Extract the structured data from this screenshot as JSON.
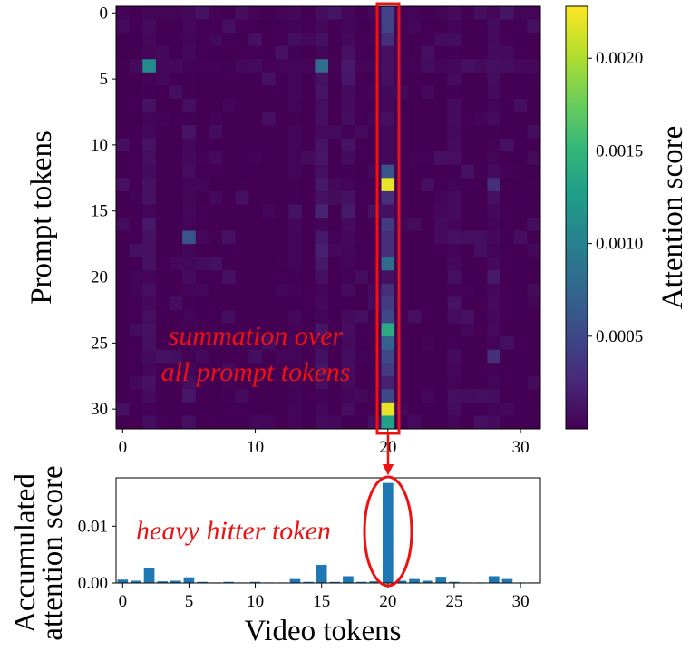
{
  "colors": {
    "highlight": "#ee1111",
    "bar": "#1f77b4",
    "viridis": [
      "#440154",
      "#482878",
      "#3e4989",
      "#31688e",
      "#26828e",
      "#1f9e89",
      "#35b779",
      "#6ece58",
      "#b5de2b",
      "#fde725"
    ]
  },
  "chart_data": [
    {
      "type": "heatmap",
      "title": "",
      "xlabel": "",
      "ylabel": "Prompt tokens",
      "x_ticks": [
        "0",
        "10",
        "20",
        "30"
      ],
      "y_ticks": [
        "0",
        "5",
        "10",
        "15",
        "20",
        "25",
        "30"
      ],
      "rows": 32,
      "cols": 32,
      "highlighted_column": 20,
      "colorbar": {
        "label": "Attention score",
        "ticks": [
          "0.0005",
          "0.0010",
          "0.0015",
          "0.0020"
        ],
        "range": [
          0.0,
          0.00228
        ]
      },
      "column_20_values": [
        0.00045,
        0.00045,
        0.0003,
        0.0001,
        0.0001,
        0.0001,
        5e-05,
        5e-05,
        0.0001,
        5e-05,
        5e-05,
        5e-05,
        0.0006,
        0.0022,
        0.0003,
        0.0001,
        0.0004,
        0.0003,
        0.0003,
        0.0008,
        0.0001,
        0.0003,
        0.0004,
        0.0005,
        0.0014,
        0.0007,
        0.0005,
        0.0004,
        0.0002,
        0.0005,
        0.0022,
        0.0013
      ],
      "notable_cells": [
        {
          "row": 4,
          "col": 2,
          "value": 0.0011
        },
        {
          "row": 4,
          "col": 15,
          "value": 0.0008
        },
        {
          "row": 17,
          "col": 5,
          "value": 0.0006
        },
        {
          "row": 13,
          "col": 28,
          "value": 0.0003
        },
        {
          "row": 26,
          "col": 28,
          "value": 0.0003
        }
      ]
    },
    {
      "type": "bar",
      "title": "",
      "xlabel": "Video tokens",
      "ylabel": "Accumulated attention score",
      "ylabel_lines": [
        "Accumulated",
        "attention score"
      ],
      "x_ticks": [
        "0",
        "5",
        "10",
        "15",
        "20",
        "25",
        "30"
      ],
      "y_ticks": [
        "0.00",
        "0.01"
      ],
      "ylim": [
        0,
        0.0185
      ],
      "categories": [
        0,
        1,
        2,
        3,
        4,
        5,
        6,
        7,
        8,
        9,
        10,
        11,
        12,
        13,
        14,
        15,
        16,
        17,
        18,
        19,
        20,
        21,
        22,
        23,
        24,
        25,
        26,
        27,
        28,
        29,
        30,
        31
      ],
      "values": [
        0.0006,
        0.0004,
        0.0027,
        0.0003,
        0.0004,
        0.001,
        0.0002,
        0.0001,
        0.0002,
        0.0001,
        0.0002,
        0.0001,
        0.0001,
        0.0007,
        0.0002,
        0.0032,
        0.0002,
        0.0012,
        0.0002,
        0.0003,
        0.0176,
        0.0004,
        0.0007,
        0.0004,
        0.0011,
        0.0002,
        0.0001,
        0.0001,
        0.0012,
        0.0007,
        0.0001,
        0.0001
      ]
    }
  ],
  "annotations": {
    "summation_line1": "summation over",
    "summation_line2": "all prompt tokens",
    "heavy_hitter": "heavy hitter token"
  }
}
